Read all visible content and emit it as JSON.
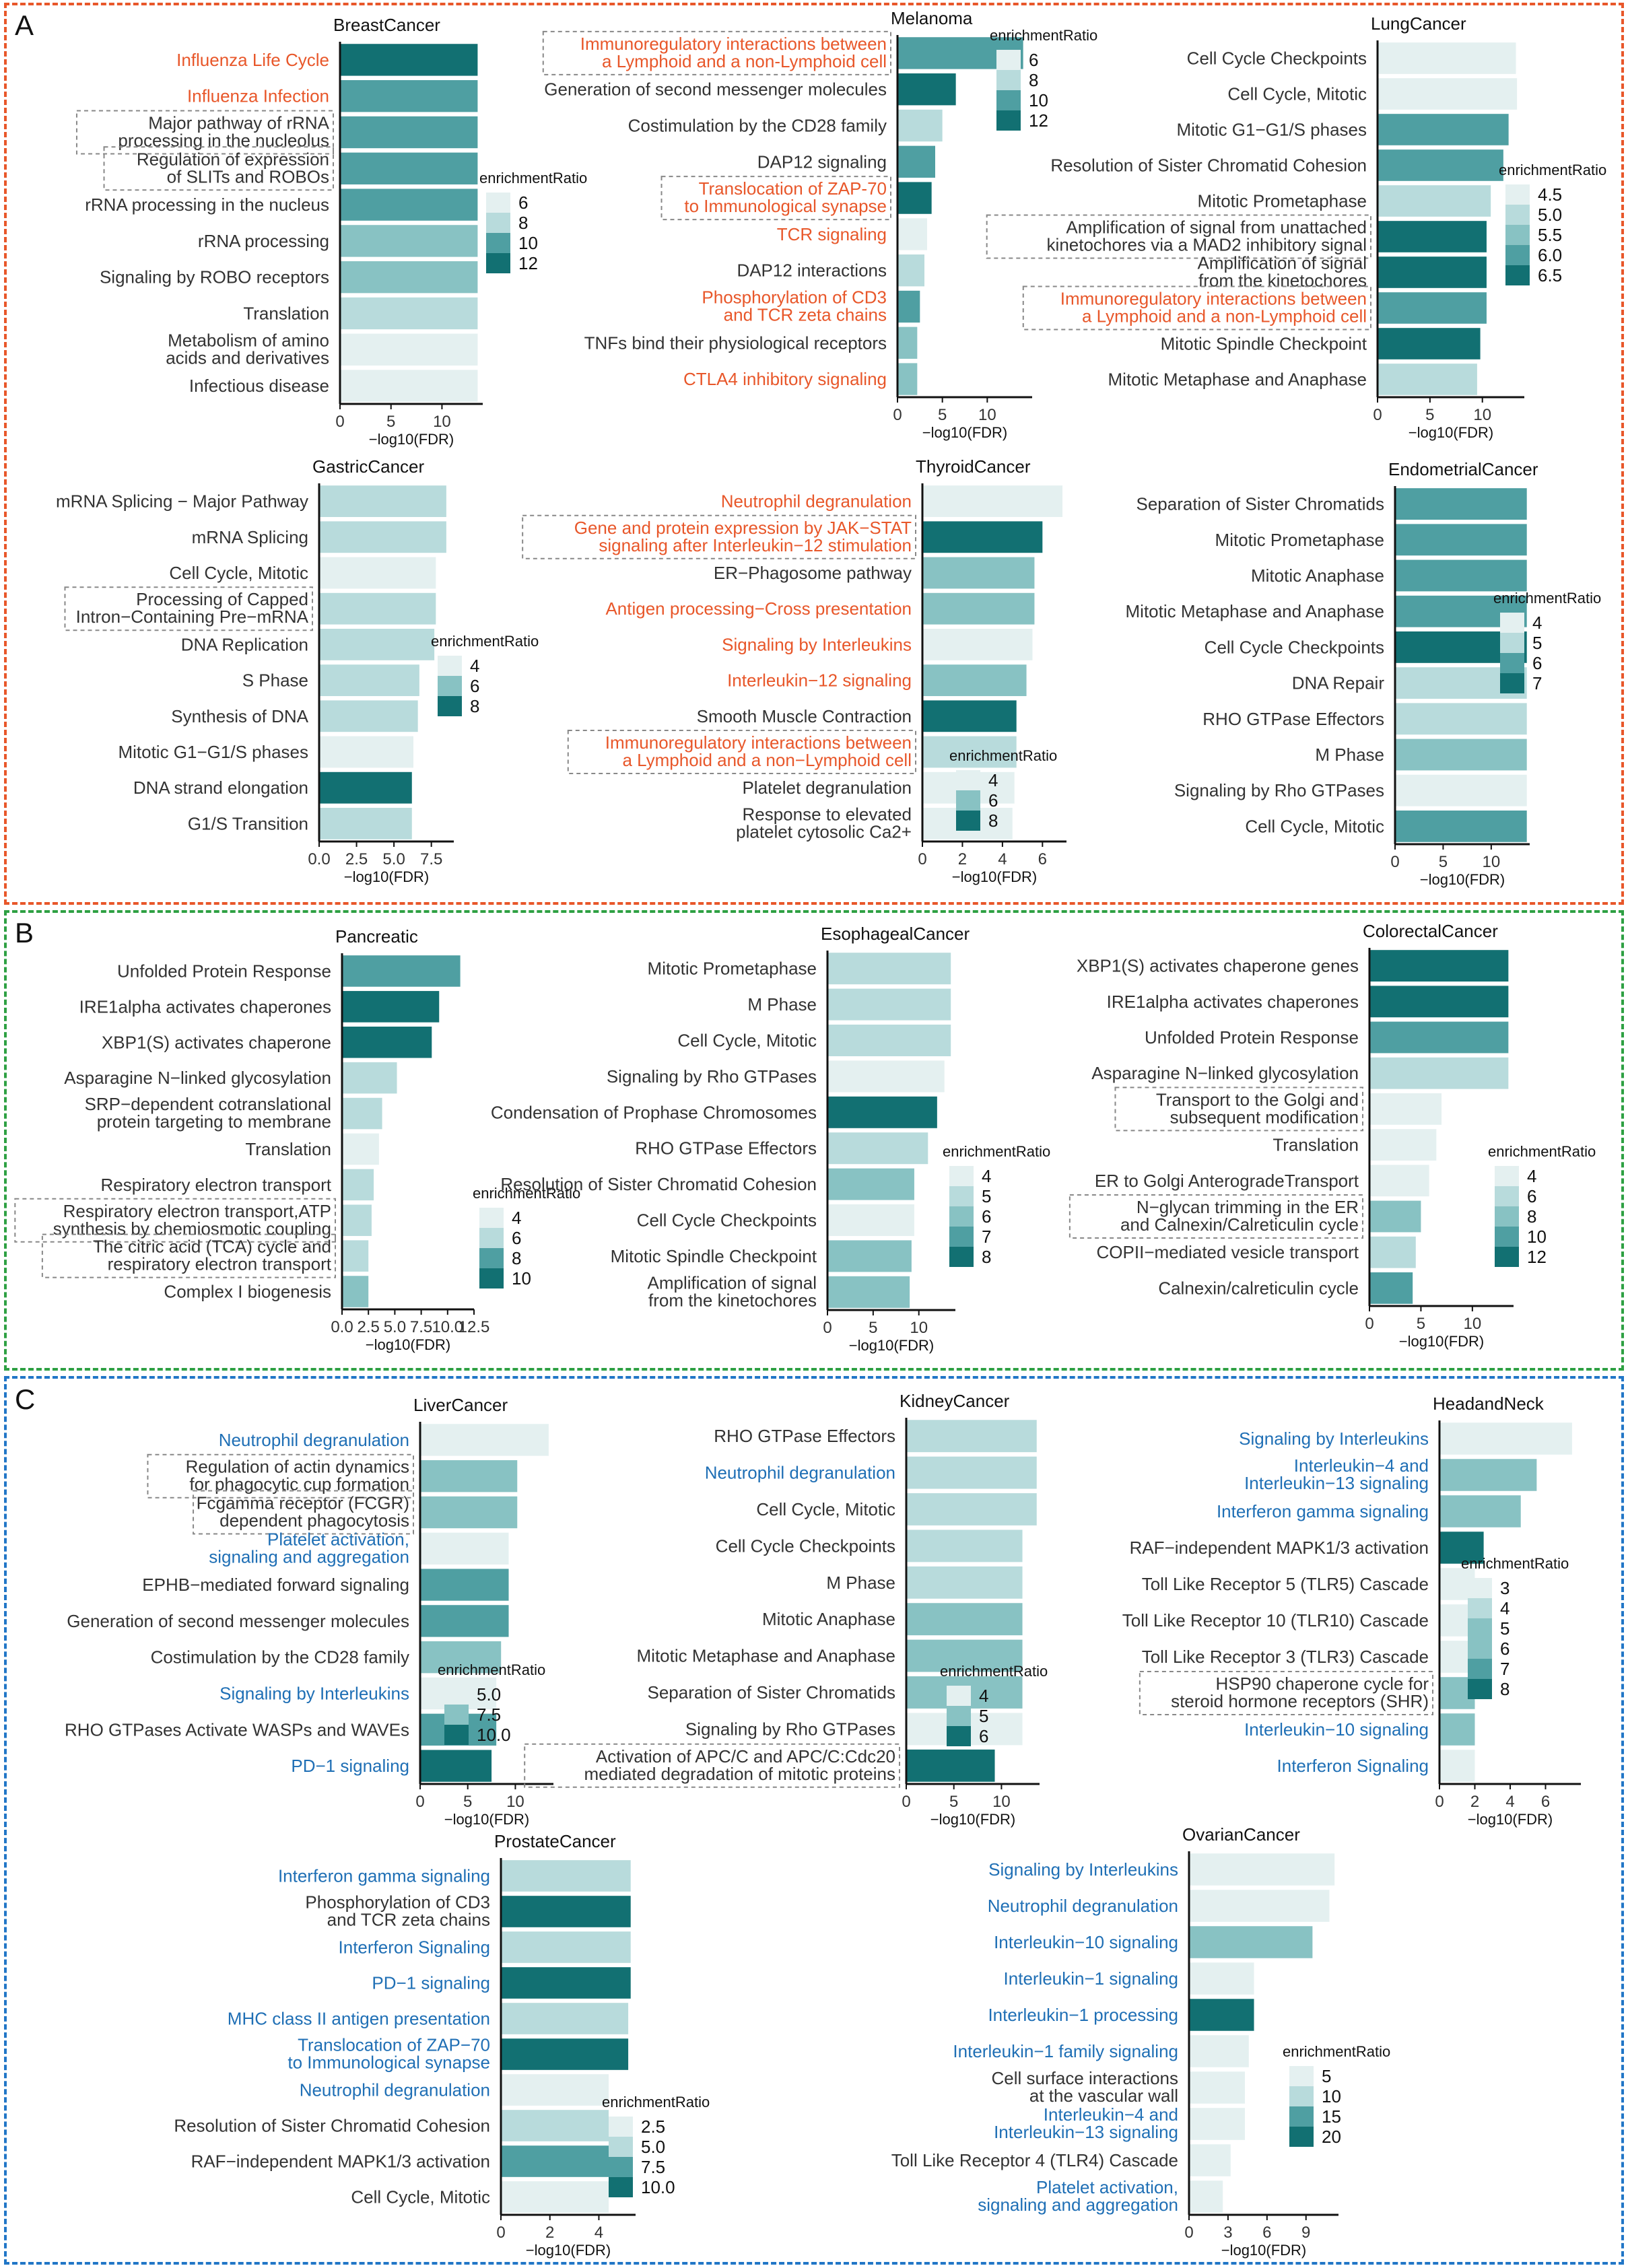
{
  "figure": {
    "sections": [
      {
        "letter": "A",
        "color": "#e8572a"
      },
      {
        "letter": "B",
        "color": "#2ea043"
      },
      {
        "letter": "C",
        "color": "#2176c7"
      }
    ],
    "palette": [
      "#e4f0f0",
      "#b8dbdc",
      "#88c2c3",
      "#4f9fa2",
      "#127072"
    ],
    "highlight_colors": {
      "orange": "#e8572a",
      "blue": "#1f6fb5",
      "default": "#333333"
    },
    "xlabel": "−log10(FDR)",
    "legend_title": "enrichmentRatio"
  },
  "chart_data": [
    {
      "type": "bar",
      "title": "BreastCancer",
      "categories": [
        "Influenza Life Cycle",
        "Influenza Infection",
        "Major pathway of rRNA processing in the nucleolus",
        "Regulation of expression of SLITs and ROBOs",
        "rRNA processing in the nucleus",
        "rRNA processing",
        "Signaling by ROBO receptors",
        "Translation",
        "Metabolism of amino acids and derivatives",
        "Infectious disease"
      ],
      "values": [
        13.5,
        13.5,
        13.5,
        13.5,
        13.5,
        13.5,
        13.5,
        13.5,
        13.5,
        13.5
      ],
      "enrichmentRatio": [
        12.6,
        11.2,
        10.5,
        10.6,
        10.2,
        10.0,
        9.6,
        7.4,
        6.6,
        5.8
      ],
      "highlight": [
        "orange",
        "orange",
        "",
        "",
        "",
        "",
        "",
        "",
        "",
        ""
      ],
      "boxed": [
        2,
        3
      ],
      "xlim": [
        0,
        14
      ],
      "xticks": [
        0,
        5,
        10
      ],
      "legend_ticks": [
        "6",
        "8",
        "10",
        "12"
      ]
    },
    {
      "type": "bar",
      "title": "Melanoma",
      "categories": [
        "Immunoregulatory interactions between a Lymphoid and a non-Lymphoid cell",
        "Generation of second messenger molecules",
        "Costimulation by the CD28 family",
        "DAP12 signaling",
        "Translocation of ZAP-70 to Immunological synapse",
        "TCR signaling",
        "DAP12 interactions",
        "Phosphorylation of CD3 and TCR zeta chains",
        "TNFs bind their physiological receptors",
        "CTLA4 inhibitory signaling"
      ],
      "values": [
        14.0,
        6.5,
        5.0,
        4.2,
        3.8,
        3.3,
        3.0,
        2.5,
        2.2,
        2.2
      ],
      "enrichmentRatio": [
        10.2,
        11.8,
        7.8,
        10.4,
        12.6,
        5.6,
        7.4,
        10.2,
        9.6,
        9.6
      ],
      "highlight": [
        "orange",
        "",
        "",
        "",
        "orange",
        "orange",
        "",
        "orange",
        "",
        "orange"
      ],
      "boxed": [
        0,
        4
      ],
      "xlim": [
        0,
        15
      ],
      "xticks": [
        0,
        5,
        10
      ],
      "legend_ticks": [
        "6",
        "8",
        "10",
        "12"
      ]
    },
    {
      "type": "bar",
      "title": "LungCancer",
      "categories": [
        "Cell Cycle Checkpoints",
        "Cell Cycle, Mitotic",
        "Mitotic G1−G1/S phases",
        "Resolution of Sister Chromatid Cohesion",
        "Mitotic Prometaphase",
        "Amplification of signal from unattached kinetochores via a MAD2 inhibitory signal",
        "Amplification of signal from the kinetochores",
        "Immunoregulatory interactions between a Lymphoid and a non-Lymphoid cell",
        "Mitotic Spindle Checkpoint",
        "Mitotic Metaphase and Anaphase"
      ],
      "values": [
        13.2,
        13.3,
        12.5,
        12.0,
        10.8,
        10.4,
        10.4,
        10.4,
        9.8,
        9.5
      ],
      "enrichmentRatio": [
        4.8,
        4.6,
        5.9,
        6.2,
        5.0,
        6.5,
        6.5,
        5.8,
        6.3,
        5.1
      ],
      "highlight": [
        "",
        "",
        "",
        "",
        "",
        "",
        "",
        "orange",
        "",
        ""
      ],
      "boxed": [
        5,
        7
      ],
      "xlim": [
        0,
        14
      ],
      "xticks": [
        0,
        5,
        10
      ],
      "legend_ticks": [
        "4.5",
        "5.0",
        "5.5",
        "6.0",
        "6.5"
      ]
    },
    {
      "type": "bar",
      "title": "GastricCancer",
      "categories": [
        "mRNA Splicing − Major Pathway",
        "mRNA Splicing",
        "Cell Cycle, Mitotic",
        "Processing of Capped Intron−Containing Pre−mRNA",
        "DNA Replication",
        "S Phase",
        "Synthesis of DNA",
        "Mitotic G1−G1/S phases",
        "DNA strand elongation",
        "G1/S Transition"
      ],
      "values": [
        8.5,
        8.5,
        7.8,
        7.8,
        7.7,
        6.7,
        6.6,
        6.3,
        6.2,
        6.2
      ],
      "enrichmentRatio": [
        5.2,
        5.2,
        4.4,
        5.0,
        5.6,
        5.5,
        6.0,
        4.8,
        9.0,
        5.0
      ],
      "highlight": [
        "",
        "",
        "",
        "",
        "",
        "",
        "",
        "",
        "",
        ""
      ],
      "boxed": [
        3
      ],
      "xlim": [
        0,
        9
      ],
      "xticks": [
        "0.0",
        "2.5",
        "5.0",
        "7.5"
      ],
      "xtick_values": [
        0,
        2.5,
        5,
        7.5
      ],
      "legend_ticks": [
        "4",
        "6",
        "8"
      ]
    },
    {
      "type": "bar",
      "title": "ThyroidCancer",
      "categories": [
        "Neutrophil degranulation",
        "Gene and protein expression by JAK−STAT signaling after Interleukin−12 stimulation",
        "ER−Phagosome pathway",
        "Antigen processing−Cross presentation",
        "Signaling by Interleukins",
        "Interleukin−12 signaling",
        "Smooth Muscle Contraction",
        "Immunoregulatory interactions between a Lymphoid and a non−Lymphoid cell",
        "Platelet degranulation",
        "Response to elevated platelet cytosolic Ca2+"
      ],
      "values": [
        7.0,
        6.0,
        5.6,
        5.6,
        5.5,
        5.2,
        4.7,
        4.7,
        4.6,
        4.5
      ],
      "enrichmentRatio": [
        4.0,
        8.9,
        6.0,
        6.0,
        4.0,
        7.0,
        8.4,
        5.0,
        4.4,
        4.3
      ],
      "highlight": [
        "orange",
        "orange",
        "",
        "orange",
        "orange",
        "orange",
        "",
        "orange",
        "",
        ""
      ],
      "boxed": [
        1,
        7
      ],
      "xlim": [
        0,
        7.2
      ],
      "xticks": [
        0,
        2,
        4,
        6
      ],
      "legend_ticks": [
        "4",
        "6",
        "8"
      ]
    },
    {
      "type": "bar",
      "title": "EndometrialCancer",
      "categories": [
        "Separation of Sister Chromatids",
        "Mitotic Prometaphase",
        "Mitotic Anaphase",
        "Mitotic Metaphase and Anaphase",
        "Cell Cycle Checkpoints",
        "DNA Repair",
        "RHO GTPase Effectors",
        "M Phase",
        "Signaling by Rho GTPases",
        "Cell Cycle, Mitotic"
      ],
      "values": [
        13.7,
        13.7,
        13.7,
        13.7,
        13.7,
        13.7,
        13.7,
        13.7,
        13.7,
        13.7
      ],
      "enrichmentRatio": [
        6.2,
        6.3,
        6.1,
        6.0,
        7.0,
        5.0,
        4.8,
        5.6,
        3.9,
        6.1
      ],
      "highlight": [
        "",
        "",
        "",
        "",
        "",
        "",
        "",
        "",
        "",
        ""
      ],
      "boxed": [],
      "xlim": [
        0,
        14
      ],
      "xticks": [
        0,
        5,
        10
      ],
      "legend_ticks": [
        "4",
        "5",
        "6",
        "7"
      ]
    },
    {
      "type": "bar",
      "title": "Pancreatic",
      "categories": [
        "Unfolded Protein Response",
        "IRE1alpha activates chaperones",
        "XBP1(S) activates chaperone",
        "Asparagine N−linked glycosylation",
        "SRP−dependent cotranslational protein targeting to membrane",
        "Translation",
        "Respiratory electron transport",
        "Respiratory electron transport,ATP synthesis by chemiosmotic coupling",
        "The citric acid (TCA) cycle and respiratory electron transport",
        "Complex I biogenesis"
      ],
      "values": [
        11.2,
        9.2,
        8.5,
        5.2,
        3.8,
        3.5,
        3.0,
        2.8,
        2.5,
        2.5
      ],
      "enrichmentRatio": [
        9.4,
        10.6,
        10.8,
        4.8,
        5.6,
        3.8,
        6.2,
        6.2,
        5.6,
        7.2
      ],
      "highlight": [
        "",
        "",
        "",
        "",
        "",
        "",
        "",
        "",
        "",
        ""
      ],
      "boxed": [
        7,
        8
      ],
      "xlim": [
        0,
        12.5
      ],
      "xticks": [
        "0.0",
        "2.5",
        "5.0",
        "7.5",
        "10.0",
        "12.5"
      ],
      "xtick_values": [
        0,
        2.5,
        5,
        7.5,
        10,
        12.5
      ],
      "legend_ticks": [
        "4",
        "6",
        "8",
        "10"
      ]
    },
    {
      "type": "bar",
      "title": "EsophagealCancer",
      "categories": [
        "Mitotic Prometaphase",
        "M Phase",
        "Cell Cycle, Mitotic",
        "Signaling by Rho GTPases",
        "Condensation of Prophase Chromosomes",
        "RHO GTPase Effectors",
        "Resolution of Sister Chromatid Cohesion",
        "Cell Cycle Checkpoints",
        "Mitotic Spindle Checkpoint",
        "Amplification of signal from the kinetochores"
      ],
      "values": [
        13.5,
        13.5,
        13.5,
        12.8,
        12.0,
        11.0,
        9.5,
        9.5,
        9.2,
        9.0
      ],
      "enrichmentRatio": [
        5.1,
        5.1,
        4.6,
        4.0,
        8.0,
        4.5,
        6.3,
        4.4,
        6.1,
        6.3
      ],
      "highlight": [
        "",
        "",
        "",
        "",
        "",
        "",
        "",
        "",
        "",
        ""
      ],
      "boxed": [],
      "xlim": [
        0,
        14
      ],
      "xticks": [
        0,
        5,
        10
      ],
      "legend_ticks": [
        "4",
        "5",
        "6",
        "7",
        "8"
      ]
    },
    {
      "type": "bar",
      "title": "ColorectalCancer",
      "categories": [
        "XBP1(S) activates chaperone genes",
        "IRE1alpha activates chaperones",
        "Unfolded Protein Response",
        "Asparagine N−linked glycosylation",
        "Transport to the Golgi and subsequent modification",
        "Translation",
        "ER to Golgi AnterogradeTransport",
        "N−glycan trimming in the ER and Calnexin/Calreticulin cycle",
        "COPII−mediated vesicle transport",
        "Calnexin/calreticulin cycle"
      ],
      "values": [
        13.5,
        13.5,
        13.5,
        13.5,
        7.0,
        6.5,
        5.8,
        5.0,
        4.5,
        4.2
      ],
      "enrichmentRatio": [
        12.4,
        12.6,
        9.8,
        6.4,
        4.6,
        4.2,
        4.6,
        9.4,
        6.0,
        9.6
      ],
      "highlight": [
        "",
        "",
        "",
        "",
        "",
        "",
        "",
        "",
        "",
        ""
      ],
      "boxed": [
        4,
        7
      ],
      "xlim": [
        0,
        14
      ],
      "xticks": [
        0,
        5,
        10
      ],
      "legend_ticks": [
        "4",
        "6",
        "8",
        "10",
        "12"
      ]
    },
    {
      "type": "bar",
      "title": "LiverCancer",
      "categories": [
        "Neutrophil degranulation",
        "Regulation of actin dynamics for phagocytic cup formation",
        "Fcgamma receptor (FCGR) dependent phagocytosis",
        "Platelet activation, signaling and aggregation",
        "EPHB−mediated forward signaling",
        "Generation of second messenger molecules",
        "Costimulation by the CD28 family",
        "Signaling by Interleukins",
        "RHO GTPases Activate WASPs and WAVEs",
        "PD−1 signaling"
      ],
      "values": [
        13.5,
        10.2,
        10.2,
        9.3,
        9.3,
        9.3,
        8.5,
        8.0,
        8.0,
        7.5
      ],
      "enrichmentRatio": [
        4.6,
        7.8,
        7.8,
        4.2,
        8.6,
        9.0,
        7.6,
        4.0,
        8.4,
        10.8
      ],
      "highlight": [
        "blue",
        "",
        "",
        "blue",
        "",
        "",
        "",
        "blue",
        "",
        "blue"
      ],
      "boxed": [
        1,
        2
      ],
      "xlim": [
        0,
        14
      ],
      "xticks": [
        0,
        5,
        10
      ],
      "legend_ticks": [
        "5.0",
        "7.5",
        "10.0"
      ]
    },
    {
      "type": "bar",
      "title": "KidneyCancer",
      "categories": [
        "RHO GTPase Effectors",
        "Neutrophil degranulation",
        "Cell Cycle, Mitotic",
        "Cell Cycle Checkpoints",
        "M Phase",
        "Mitotic Anaphase",
        "Mitotic Metaphase and Anaphase",
        "Separation of Sister Chromatids",
        "Signaling by Rho GTPases",
        "Activation of APC/C and APC/C:Cdc20 mediated degradation of mitotic proteins"
      ],
      "values": [
        13.7,
        13.7,
        13.7,
        12.2,
        12.2,
        12.2,
        12.2,
        12.2,
        12.2,
        9.3
      ],
      "enrichmentRatio": [
        4.4,
        4.3,
        4.5,
        4.4,
        4.6,
        5.0,
        5.0,
        5.1,
        3.9,
        6.2
      ],
      "highlight": [
        "",
        "blue",
        "",
        "",
        "",
        "",
        "",
        "",
        "",
        ""
      ],
      "boxed": [
        9
      ],
      "xlim": [
        0,
        14
      ],
      "xticks": [
        0,
        5,
        10
      ],
      "legend_ticks": [
        "4",
        "5",
        "6"
      ]
    },
    {
      "type": "bar",
      "title": "HeadandNeck",
      "categories": [
        "Signaling by Interleukins",
        "Interleukin−4 and Interleukin−13 signaling",
        "Interferon gamma signaling",
        "RAF−independent MAPK1/3 activation",
        "Toll Like Receptor 5 (TLR5) Cascade",
        "Toll Like Receptor 10 (TLR10) Cascade",
        "Toll Like Receptor 3 (TLR3) Cascade",
        "HSP90 chaperone cycle for steroid hormone receptors (SHR)",
        "Interleukin−10 signaling",
        "Interferon Signaling"
      ],
      "values": [
        7.5,
        5.5,
        4.6,
        2.5,
        2.0,
        2.0,
        2.0,
        2.0,
        2.0,
        2.0
      ],
      "enrichmentRatio": [
        3.2,
        5.8,
        5.2,
        8.4,
        3.4,
        3.4,
        3.4,
        5.4,
        5.2,
        3.0
      ],
      "highlight": [
        "blue",
        "blue",
        "blue",
        "",
        "",
        "",
        "",
        "",
        "blue",
        "blue"
      ],
      "boxed": [
        7
      ],
      "xlim": [
        0,
        8
      ],
      "xticks": [
        0,
        2,
        4,
        6
      ],
      "legend_ticks": [
        "3",
        "4",
        "5",
        "6",
        "7",
        "8"
      ]
    },
    {
      "type": "bar",
      "title": "ProstateCancer",
      "categories": [
        "Interferon gamma signaling",
        "Phosphorylation of CD3 and TCR zeta chains",
        "Interferon Signaling",
        "PD−1 signaling",
        "MHC class II antigen presentation",
        "Translocation of ZAP−70 to Immunological synapse",
        "Neutrophil degranulation",
        "Resolution of Sister Chromatid Cohesion",
        "RAF−independent MAPK1/3 activation",
        "Cell Cycle, Mitotic"
      ],
      "values": [
        5.3,
        5.3,
        5.3,
        5.3,
        5.2,
        5.2,
        4.4,
        4.4,
        4.4,
        4.4
      ],
      "enrichmentRatio": [
        5.0,
        11.2,
        4.2,
        11.8,
        4.8,
        11.6,
        3.0,
        4.0,
        9.0,
        2.8
      ],
      "highlight": [
        "blue",
        "",
        "blue",
        "blue",
        "blue",
        "blue",
        "blue",
        "",
        "",
        ""
      ],
      "boxed": [],
      "xlim": [
        0,
        5.5
      ],
      "xticks": [
        0,
        2,
        4
      ],
      "legend_ticks": [
        "2.5",
        "5.0",
        "7.5",
        "10.0"
      ]
    },
    {
      "type": "bar",
      "title": "OvarianCancer",
      "categories": [
        "Signaling by Interleukins",
        "Neutrophil degranulation",
        "Interleukin−10 signaling",
        "Interleukin−1 signaling",
        "Interleukin−1 processing",
        "Interleukin−1 family signaling",
        "Cell surface interactions at the vascular wall",
        "Interleukin−4 and Interleukin−13 signaling",
        "Toll Like Receptor 4 (TLR4) Cascade",
        "Platelet activation, signaling and aggregation"
      ],
      "values": [
        11.2,
        10.8,
        9.5,
        5.0,
        5.0,
        4.6,
        4.3,
        4.3,
        3.2,
        2.6
      ],
      "enrichmentRatio": [
        4.0,
        3.5,
        12.0,
        3.8,
        22.0,
        4.0,
        4.0,
        4.0,
        4.0,
        4.0
      ],
      "highlight": [
        "blue",
        "blue",
        "blue",
        "blue",
        "blue",
        "blue",
        "",
        "blue",
        "",
        "blue"
      ],
      "boxed": [],
      "xlim": [
        0,
        11.5
      ],
      "xticks": [
        0,
        3,
        6,
        9
      ],
      "legend_ticks": [
        "5",
        "10",
        "15",
        "20"
      ]
    }
  ]
}
